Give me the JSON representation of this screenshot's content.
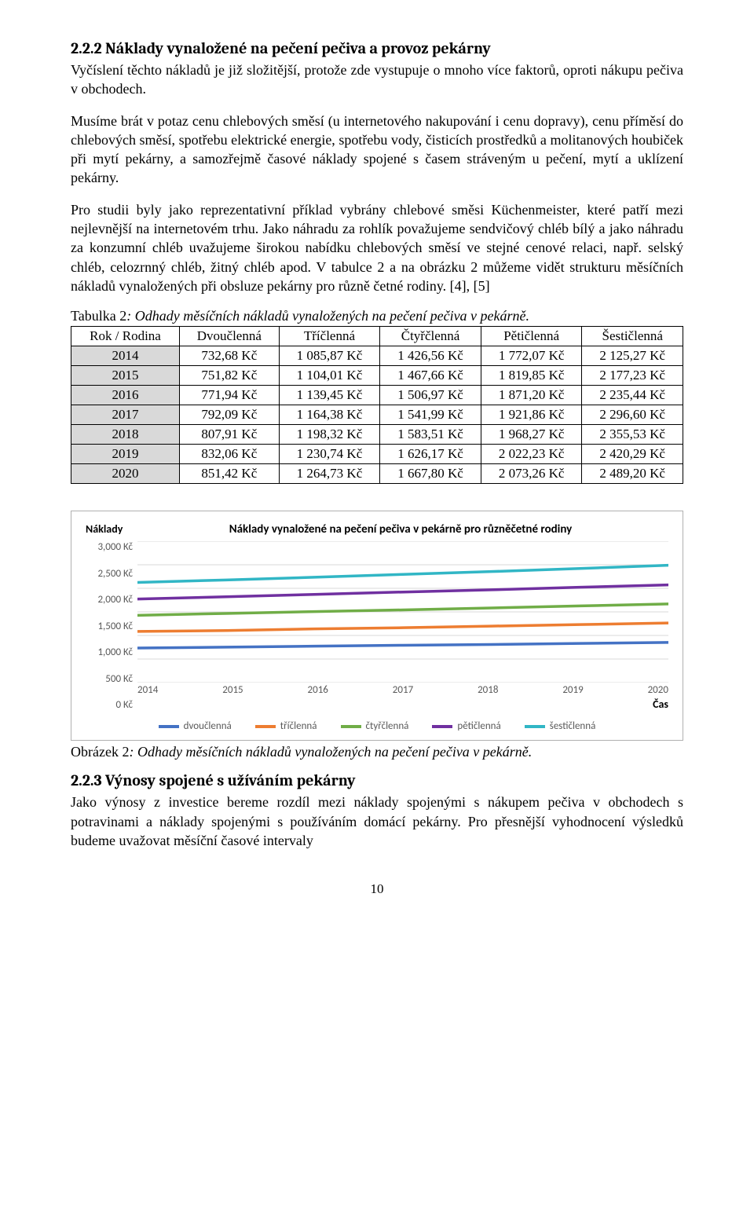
{
  "section222": {
    "heading": "2.2.2   Náklady vynaložené na pečení pečiva a provoz pekárny",
    "para1": "Vyčíslení těchto nákladů je již složitější, protože zde vystupuje o mnoho více faktorů, oproti nákupu pečiva v obchodech.",
    "para2": "Musíme brát v potaz cenu chlebových směsí (u internetového nakupování i cenu dopravy), cenu příměsí do chlebových směsí, spotřebu elektrické energie, spotřebu vody, čisticích prostředků a molitanových houbiček při mytí pekárny, a samozřejmě časové náklady spojené s časem stráveným u pečení, mytí a uklízení pekárny.",
    "para3": "Pro studii byly jako reprezentativní příklad vybrány chlebové směsi Küchenmeister, které patří mezi nejlevnější na internetovém trhu. Jako náhradu za rohlík považujeme sendvičový chléb bílý a jako náhradu za konzumní chléb uvažujeme širokou nabídku chlebových směsí ve stejné cenové relaci, např. selský chléb, celozrnný chléb, žitný chléb apod. V tabulce 2 a na obrázku 2 můžeme vidět strukturu měsíčních nákladů vynaložených při obsluze pekárny pro různě četné rodiny. [4], [5]"
  },
  "table2": {
    "caption_prefix": "Tabulka 2",
    "caption_rest": ": Odhady měsíčních nákladů vynaložených na pečení pečiva v pekárně.",
    "columns": [
      "Rok / Rodina",
      "Dvoučlenná",
      "Tříčlenná",
      "Čtyřčlenná",
      "Pětičlenná",
      "Šestičlenná"
    ],
    "rows": [
      [
        "2014",
        "732,68 Kč",
        "1 085,87 Kč",
        "1 426,56 Kč",
        "1 772,07 Kč",
        "2 125,27 Kč"
      ],
      [
        "2015",
        "751,82 Kč",
        "1 104,01 Kč",
        "1 467,66 Kč",
        "1 819,85 Kč",
        "2 177,23 Kč"
      ],
      [
        "2016",
        "771,94 Kč",
        "1 139,45 Kč",
        "1 506,97 Kč",
        "1 871,20 Kč",
        "2 235,44 Kč"
      ],
      [
        "2017",
        "792,09 Kč",
        "1 164,38 Kč",
        "1 541,99 Kč",
        "1 921,86 Kč",
        "2 296,60 Kč"
      ],
      [
        "2018",
        "807,91 Kč",
        "1 198,32 Kč",
        "1 583,51 Kč",
        "1 968,27 Kč",
        "2 355,53 Kč"
      ],
      [
        "2019",
        "832,06 Kč",
        "1 230,74 Kč",
        "1 626,17 Kč",
        "2 022,23 Kč",
        "2 420,29 Kč"
      ],
      [
        "2020",
        "851,42 Kč",
        "1 264,73 Kč",
        "1 667,80 Kč",
        "2 073,26 Kč",
        "2 489,20 Kč"
      ]
    ]
  },
  "chart": {
    "type": "line",
    "y_axis_label": "Náklady",
    "x_axis_label": "Čas",
    "title": "Náklady vynaložené na pečení pečiva v pekárně pro různěčetné rodiny",
    "yticks": [
      "3,000 Kč",
      "2,500 Kč",
      "2,000 Kč",
      "1,500 Kč",
      "1,000 Kč",
      "500 Kč",
      "0 Kč"
    ],
    "ylim": [
      0,
      3000
    ],
    "xlabels": [
      "2014",
      "2015",
      "2016",
      "2017",
      "2018",
      "2019",
      "2020"
    ],
    "line_width": 3.5,
    "grid_color": "#d9d9d9",
    "background_color": "#ffffff",
    "series": [
      {
        "name": "dvoučlenná",
        "color": "#4472c4",
        "values": [
          732.68,
          751.82,
          771.94,
          792.09,
          807.91,
          832.06,
          851.42
        ]
      },
      {
        "name": "tříčlenná",
        "color": "#ed7d31",
        "values": [
          1085.87,
          1104.01,
          1139.45,
          1164.38,
          1198.32,
          1230.74,
          1264.73
        ]
      },
      {
        "name": "čtyřčlenná",
        "color": "#70ad47",
        "values": [
          1426.56,
          1467.66,
          1506.97,
          1541.99,
          1583.51,
          1626.17,
          1667.8
        ]
      },
      {
        "name": "pětičlenná",
        "color": "#7030a0",
        "values": [
          1772.07,
          1819.85,
          1871.2,
          1921.86,
          1968.27,
          2022.23,
          2073.26
        ]
      },
      {
        "name": "šestičlenná",
        "color": "#31b6c5",
        "values": [
          2125.27,
          2177.23,
          2235.44,
          2296.6,
          2355.53,
          2420.29,
          2489.2
        ]
      }
    ]
  },
  "figure2": {
    "caption_prefix": "Obrázek 2",
    "caption_rest": ": Odhady měsíčních nákladů vynaložených na pečení pečiva v pekárně."
  },
  "section223": {
    "heading": "2.2.3   Výnosy spojené s užíváním pekárny",
    "para1": "Jako výnosy z investice bereme rozdíl mezi náklady spojenými s nákupem pečiva v obchodech s potravinami a náklady spojenými s používáním domácí pekárny. Pro přesnější vyhodnocení výsledků budeme uvažovat měsíční časové intervaly"
  },
  "page_number": "10"
}
